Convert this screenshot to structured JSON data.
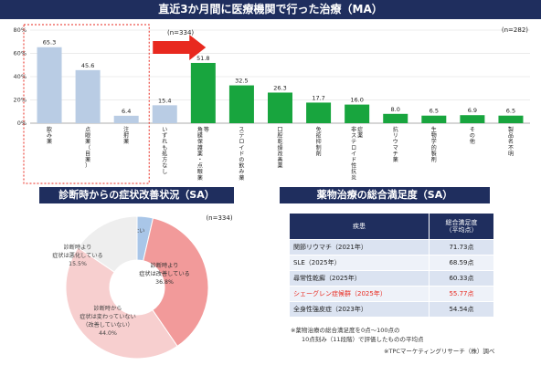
{
  "banners": {
    "top": "直近3か月間に医療機関で行った治療（MA）",
    "left": "診断時からの症状改善状況（SA）",
    "right": "薬物治療の総合満足度（SA）"
  },
  "chart_data": [
    {
      "type": "bar",
      "n_left": "(n=334)",
      "n_right": "(n=282)",
      "yticks": [
        "0%",
        "20%",
        "40%",
        "60%",
        "80%"
      ],
      "ylim": [
        0,
        80
      ],
      "categories": [
        "飲み薬",
        "点眼薬（目薬）",
        "注射薬",
        "いずれも処方なし",
        "角膜保護薬・点眼薬等",
        "ステロイドの飲み薬",
        "口腔乾燥改善薬",
        "免疫抑制剤",
        "非ステロイド性抗炎症薬",
        "抗リウマチ薬",
        "生物学的製剤",
        "その他",
        "製品名不明"
      ],
      "values": [
        65.3,
        45.6,
        6.4,
        15.4,
        51.8,
        32.5,
        26.3,
        17.7,
        16.0,
        8.0,
        6.5,
        6.9,
        6.5
      ],
      "colors": [
        "#b9cce4",
        "#b9cce4",
        "#b9cce4",
        "#b9cce4",
        "#18a53e",
        "#18a53e",
        "#18a53e",
        "#18a53e",
        "#18a53e",
        "#18a53e",
        "#18a53e",
        "#18a53e",
        "#18a53e"
      ]
    },
    {
      "type": "pie",
      "n": "(n=334)",
      "slices": [
        {
          "label": [
            "わからない",
            "3.6%"
          ],
          "value": 3.6,
          "color": "#a9c6e8"
        },
        {
          "label": [
            "診断時より",
            "症状は改善している",
            "36.8%"
          ],
          "value": 36.8,
          "color": "#f29a9a"
        },
        {
          "label": [
            "診断時から",
            "症状は変わっていない",
            "（改善していない）",
            "44.0%"
          ],
          "value": 44.0,
          "color": "#f7cfcf"
        },
        {
          "label": [
            "診断時より",
            "症状は悪化している",
            "15.5%"
          ],
          "value": 15.5,
          "color": "#eeeeee"
        }
      ]
    }
  ],
  "table": {
    "headers": [
      "疾患",
      "総合満足度\n（平均点）"
    ],
    "rows": [
      {
        "disease": "関節リウマチ（2021年）",
        "score": "71.73点"
      },
      {
        "disease": "SLE（2025年）",
        "score": "68.59点"
      },
      {
        "disease": "尋常性乾癬（2025年）",
        "score": "60.33点"
      },
      {
        "disease": "シェーグレン症候群（2025年）",
        "score": "55.77点"
      },
      {
        "disease": "全身性強皮症（2023年）",
        "score": "54.54点"
      }
    ],
    "highlight_row": 3
  },
  "notes": {
    "line1": "※薬物治療の総合満足度を0点～100点の",
    "line2": "10点刻み（11段階）で評価したものの平均点",
    "source": "※TPCマーケティングリサーチ（株）調べ"
  }
}
